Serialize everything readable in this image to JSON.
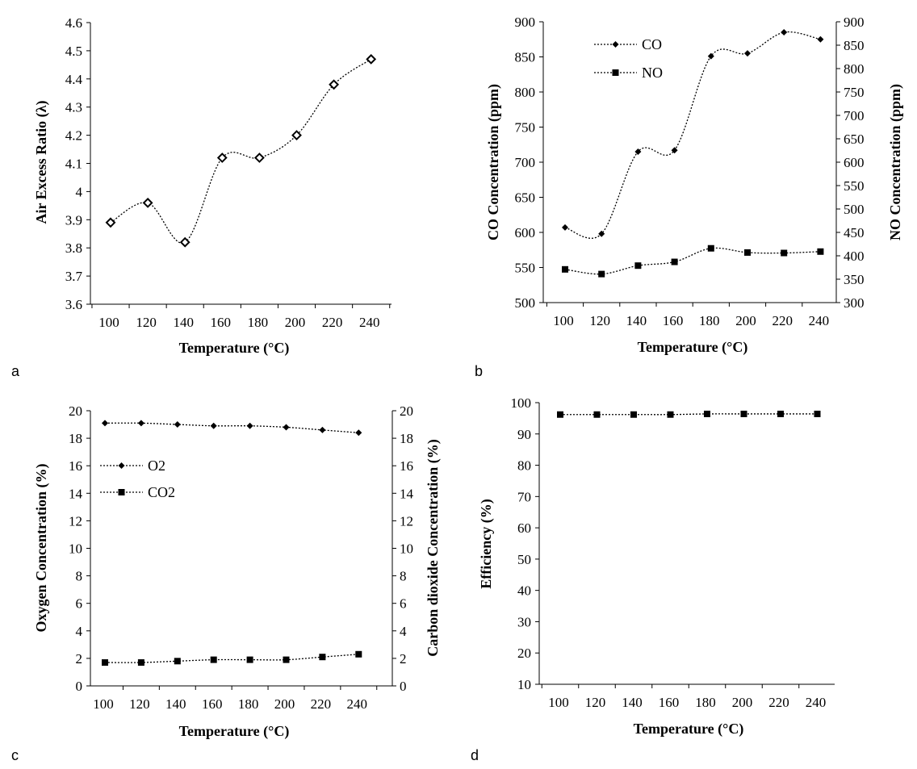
{
  "figure": {
    "panels": [
      {
        "id": "a",
        "label": "a"
      },
      {
        "id": "b",
        "label": "b"
      },
      {
        "id": "c",
        "label": "c"
      },
      {
        "id": "d",
        "label": "d"
      }
    ]
  },
  "colors": {
    "ink": "#000000",
    "background": "#ffffff"
  },
  "chart_data": [
    {
      "panel": "a",
      "type": "line",
      "title": "",
      "xlabel": "Temperature (°C)",
      "ylabel": "Air Excess Ratio (λ)",
      "x_ticks": [
        "100",
        "120",
        "140",
        "160",
        "180",
        "200",
        "220",
        "240"
      ],
      "ylim": [
        3.6,
        4.6
      ],
      "y_ticks": [
        "3.6",
        "3.7",
        "3.8",
        "3.9",
        "4",
        "4.1",
        "4.2",
        "4.3",
        "4.4",
        "4.5",
        "4.6"
      ],
      "series": [
        {
          "marker": "open-diamond",
          "axis": "left",
          "values": [
            3.89,
            3.96,
            3.82,
            4.12,
            4.12,
            4.2,
            4.38,
            4.47
          ]
        }
      ],
      "grid": false,
      "legend": "none"
    },
    {
      "panel": "b",
      "type": "line",
      "title": "",
      "xlabel": "Temperature (°C)",
      "ylabel": "CO Concentration (ppm)",
      "y2label": "NO Concentration (ppm)",
      "x_ticks": [
        "100",
        "120",
        "140",
        "160",
        "180",
        "200",
        "220",
        "240"
      ],
      "ylim": [
        500,
        900
      ],
      "y_ticks": [
        "500",
        "550",
        "600",
        "650",
        "700",
        "750",
        "800",
        "850",
        "900"
      ],
      "y2lim": [
        300,
        900
      ],
      "y2_ticks": [
        "300",
        "350",
        "400",
        "450",
        "500",
        "550",
        "600",
        "650",
        "700",
        "750",
        "800",
        "850",
        "900"
      ],
      "series": [
        {
          "name": "CO",
          "marker": "filled-diamond",
          "axis": "left",
          "values": [
            607,
            598,
            715,
            717,
            851,
            855,
            885,
            875
          ]
        },
        {
          "name": "NO",
          "marker": "filled-square",
          "axis": "right",
          "values": [
            371,
            361,
            379,
            387,
            416,
            407,
            406,
            409
          ]
        }
      ],
      "grid": false,
      "legend": "top-left"
    },
    {
      "panel": "c",
      "type": "line",
      "title": "",
      "xlabel": "Temperature (°C)",
      "ylabel": "Oxygen Concentration (%)",
      "y2label": "Carbon dioxide Concentration (%)",
      "x_ticks": [
        "100",
        "120",
        "140",
        "160",
        "180",
        "200",
        "220",
        "240"
      ],
      "ylim": [
        0,
        20
      ],
      "y_ticks": [
        "0",
        "2",
        "4",
        "6",
        "8",
        "10",
        "12",
        "14",
        "16",
        "18",
        "20"
      ],
      "y2lim": [
        0,
        20
      ],
      "y2_ticks": [
        "0",
        "2",
        "4",
        "6",
        "8",
        "10",
        "12",
        "14",
        "16",
        "18",
        "20"
      ],
      "series": [
        {
          "name": "O2",
          "marker": "filled-diamond",
          "axis": "left",
          "values": [
            19.1,
            19.1,
            19.0,
            18.9,
            18.9,
            18.8,
            18.6,
            18.4
          ]
        },
        {
          "name": "CO2",
          "marker": "filled-square",
          "axis": "right",
          "values": [
            1.7,
            1.7,
            1.8,
            1.9,
            1.9,
            1.9,
            2.1,
            2.3
          ]
        }
      ],
      "grid": false,
      "legend": "upper-left"
    },
    {
      "panel": "d",
      "type": "line",
      "title": "",
      "xlabel": "Temperature (°C)",
      "ylabel": "Efficiency (%)",
      "x_ticks": [
        "100",
        "120",
        "140",
        "160",
        "180",
        "200",
        "220",
        "240"
      ],
      "ylim": [
        10,
        100
      ],
      "y_ticks": [
        "10",
        "20",
        "30",
        "40",
        "50",
        "60",
        "70",
        "80",
        "90",
        "100"
      ],
      "series": [
        {
          "marker": "filled-square",
          "axis": "left",
          "values": [
            96.2,
            96.2,
            96.2,
            96.2,
            96.4,
            96.4,
            96.4,
            96.4
          ]
        }
      ],
      "grid": false,
      "legend": "none"
    }
  ]
}
